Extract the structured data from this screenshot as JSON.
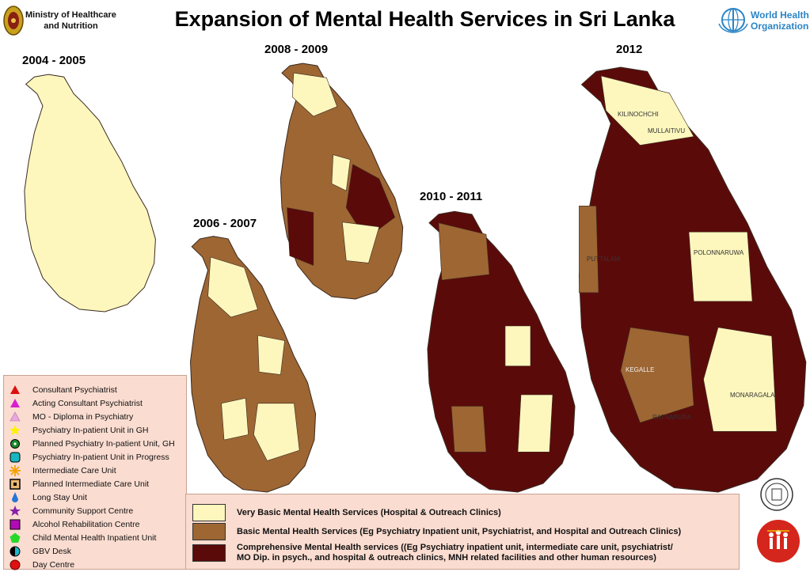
{
  "header": {
    "ministry_line1": "Ministry of Healthcare",
    "ministry_line2": "and Nutrition",
    "title": "Expansion of Mental Health Services in Sri Lanka",
    "who_line1": "World Health",
    "who_line2": "Organization"
  },
  "maps": [
    {
      "year": "2004 - 2005",
      "level": "very_basic"
    },
    {
      "year": "2006 - 2007",
      "level": "basic"
    },
    {
      "year": "2008 - 2009",
      "level": "basic"
    },
    {
      "year": "2010 - 2011",
      "level": "comprehensive"
    },
    {
      "year": "2012",
      "level": "comprehensive"
    }
  ],
  "district_labels": {
    "kilinochchi": "KILINOCHCHI",
    "mullaitivu": "MULLAITIVU",
    "puttalam": "PUTTALAM",
    "polonnaruwa": "POLONNARUWA",
    "monaragala": "MONARAGALA",
    "ratnapura": "RATNAPURA",
    "kegalle": "KEGALLE"
  },
  "legend_items": [
    {
      "label": "Consultant Psychiatrist",
      "icon": "red-triangle-icon"
    },
    {
      "label": "Acting Consultant Psychiatrist",
      "icon": "magenta-triangle-icon"
    },
    {
      "label": "MO - Diploma in Psychiatry",
      "icon": "pink-triangle-icon"
    },
    {
      "label": "Psychiatry In-patient Unit in GH",
      "icon": "yellow-star-icon"
    },
    {
      "label": "Planned Psychiatry In-patient Unit, GH",
      "icon": "green-circle-icon"
    },
    {
      "label": "Psychiatry In-patient Unit in Progress",
      "icon": "teal-square-icon"
    },
    {
      "label": "Intermediate Care Unit",
      "icon": "orange-asterisk-icon"
    },
    {
      "label": "Planned Intermediate Care Unit",
      "icon": "dotted-square-icon"
    },
    {
      "label": "Long Stay Unit",
      "icon": "blue-drop-icon"
    },
    {
      "label": "Community Support Centre",
      "icon": "purple-star-icon"
    },
    {
      "label": "Alcohol Rehabilitation Centre",
      "icon": "purple-square-icon"
    },
    {
      "label": "Child Mental Health Inpatient Unit",
      "icon": "green-pentagon-icon"
    },
    {
      "label": "GBV Desk",
      "icon": "half-circle-icon"
    },
    {
      "label": "Day Centre",
      "icon": "red-circle-icon"
    }
  ],
  "categories": [
    {
      "text": "Very Basic Mental Health Services (Hospital & Outreach Clinics)",
      "color": "#fdf7bd"
    },
    {
      "text": "Basic Mental Health Services (Eg Psychiatry Inpatient unit, Psychiatrist, and Hospital and Outreach Clinics)",
      "color": "#9d6633"
    },
    {
      "text_line1": "Comprehensive Mental Health services ((Eg Psychiatry inpatient unit, intermediate care unit, psychiatrist/",
      "text_line2": "MO Dip. in psych., and hospital & outreach clinics, MNH related facilities and other human resources)",
      "color": "#5b0a0a"
    }
  ],
  "colors": {
    "very_basic": "#fdf7bd",
    "basic": "#9d6633",
    "comprehensive": "#5b0a0a",
    "who_blue": "#2a84c5",
    "legend_bg": "#fadcd0"
  }
}
